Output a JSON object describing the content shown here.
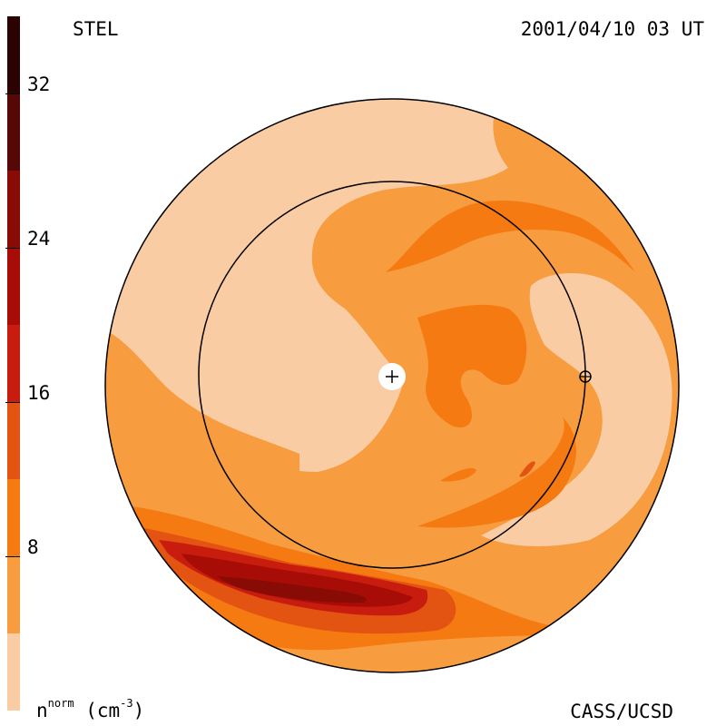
{
  "header": {
    "observatory": "STEL",
    "timestamp": "2001/04/10 03 UT"
  },
  "footer": {
    "credit": "CASS/UCSD",
    "unit_base": "n",
    "unit_sup": "norm",
    "unit_rest": " (cm",
    "unit_exp": "-3",
    "unit_close": ")"
  },
  "colorbar": {
    "min": 0,
    "max": 36,
    "ticks": [
      "8",
      "16",
      "24",
      "32"
    ],
    "tick_values": [
      8,
      16,
      24,
      32
    ],
    "levels": [
      {
        "from": 0,
        "to": 4,
        "color": "#f9cca3"
      },
      {
        "from": 4,
        "to": 8,
        "color": "#f79c3f"
      },
      {
        "from": 8,
        "to": 12,
        "color": "#f67a12"
      },
      {
        "from": 12,
        "to": 16,
        "color": "#e35413"
      },
      {
        "from": 16,
        "to": 20,
        "color": "#c81d0e"
      },
      {
        "from": 20,
        "to": 24,
        "color": "#a70d06"
      },
      {
        "from": 24,
        "to": 28,
        "color": "#880b05"
      },
      {
        "from": 28,
        "to": 32,
        "color": "#560806"
      },
      {
        "from": 32,
        "to": 36,
        "color": "#2c0303"
      }
    ]
  },
  "colors": {
    "level1": "#f9cca3",
    "level2": "#f79c3f",
    "level3": "#f67a12",
    "level4": "#e35413",
    "level5": "#c81d0e",
    "level6": "#a70d06",
    "level7": "#880b05",
    "level8": "#560806",
    "background": "#ffffff",
    "orbit": "#000000"
  },
  "symbols": {
    "sun": "sun-icon",
    "earth": "earth-icon"
  }
}
